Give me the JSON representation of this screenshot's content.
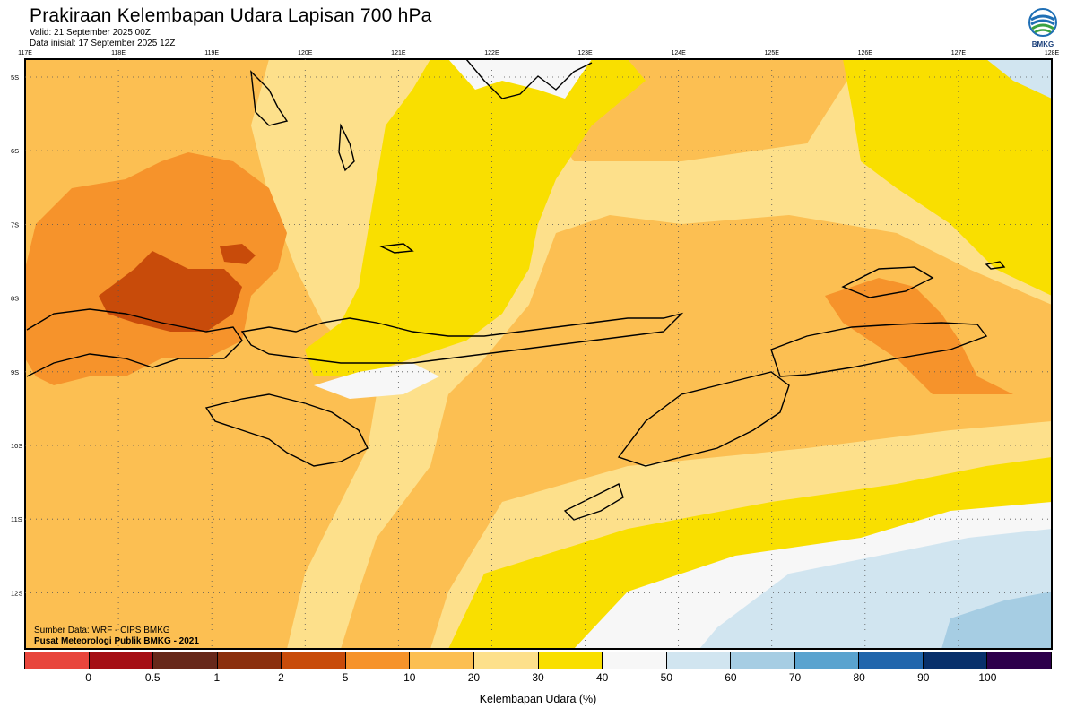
{
  "header": {
    "title": "Prakiraan Kelembapan Udara Lapisan 700 hPa",
    "valid": "Valid: 21 September 2025 00Z",
    "initial": "Data inisial: 17 September 2025 12Z"
  },
  "logo": {
    "text": "BMKG",
    "icon": "bmkg-logo-icon"
  },
  "axes": {
    "lon_labels": [
      "117E",
      "118E",
      "119E",
      "120E",
      "121E",
      "122E",
      "123E",
      "124E",
      "125E",
      "126E",
      "127E",
      "128E"
    ],
    "lat_labels": [
      "5S",
      "6S",
      "7S",
      "8S",
      "9S",
      "10S",
      "11S",
      "12S"
    ]
  },
  "source": {
    "line1": "Sumber Data: WRF - CIPS BMKG",
    "line2": "Pusat Meteorologi Publik BMKG - 2021"
  },
  "colorbar": {
    "title": "Kelembapan Udara (%)",
    "ticks": [
      "0",
      "0.5",
      "1",
      "2",
      "5",
      "10",
      "20",
      "30",
      "40",
      "50",
      "60",
      "70",
      "80",
      "90",
      "100"
    ],
    "colors": [
      "#e8453c",
      "#a50f15",
      "#67281a",
      "#8b2f0d",
      "#c84b0a",
      "#f6932b",
      "#fcbf52",
      "#fde08b",
      "#f9df00",
      "#f7f7f7",
      "#d1e5f0",
      "#a6cde3",
      "#5aa3cf",
      "#2166ac",
      "#08306b",
      "#2d004b"
    ]
  },
  "map_colors": {
    "c10": "#f6932b",
    "c20": "#fcbf52",
    "c30": "#fde08b",
    "c40": "#f9df00",
    "c50": "#f7f7f7",
    "c60": "#d1e5f0",
    "c70": "#a6cde3",
    "c5": "#c84b0a"
  }
}
